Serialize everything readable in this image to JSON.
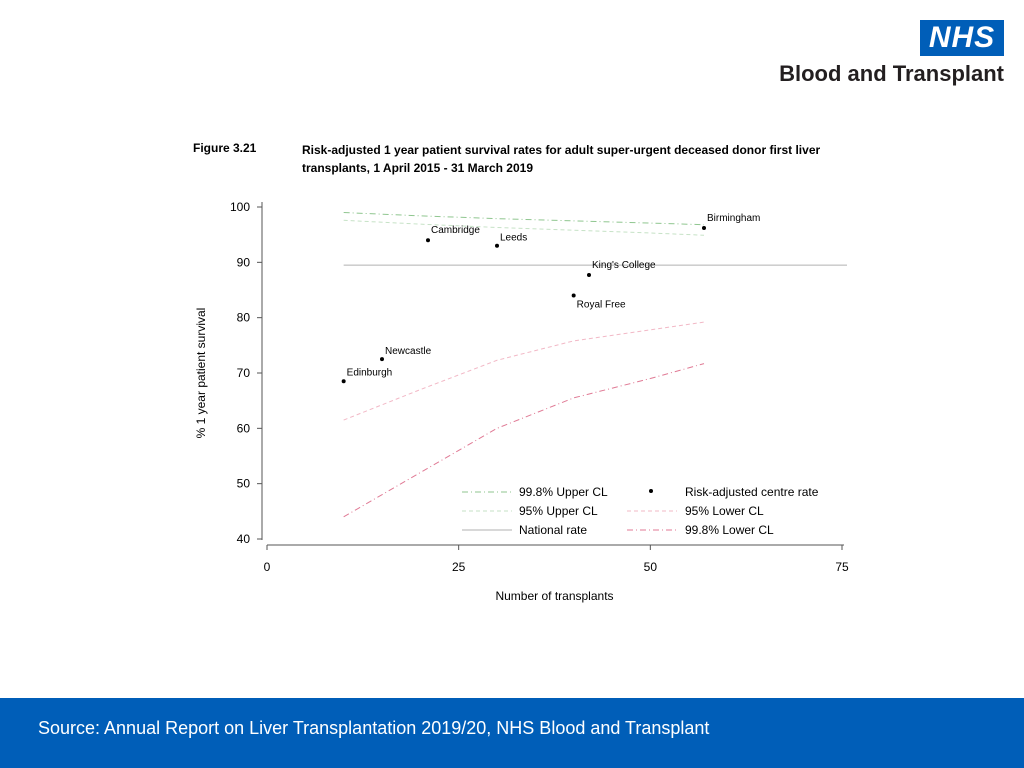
{
  "logo": {
    "nhs": "NHS",
    "subtitle": "Blood and Transplant"
  },
  "figure": {
    "label": "Figure 3.21",
    "title": "Risk-adjusted 1 year patient survival rates for adult super-urgent deceased donor first liver transplants, 1 April 2015 - 31 March 2019"
  },
  "footer": {
    "source": "Source: Annual Report on Liver Transplantation 2019/20, NHS Blood and Transplant"
  },
  "colors": {
    "brand_blue": "#005eb8",
    "upper998": "#8fc68f",
    "upper95": "#c6e2c6",
    "national": "#b0b0b0",
    "lower95": "#f2b8c6",
    "lower998": "#e07a95"
  },
  "chart_data": {
    "type": "scatter",
    "xlabel": "Number of transplants",
    "ylabel": "% 1 year patient survival",
    "xlim": [
      0,
      75
    ],
    "ylim": [
      40,
      100
    ],
    "xticks": [
      0,
      25,
      50,
      75
    ],
    "yticks": [
      40,
      50,
      60,
      70,
      80,
      90,
      100
    ],
    "points": [
      {
        "name": "Birmingham",
        "x": 57,
        "y": 96.2
      },
      {
        "name": "Cambridge",
        "x": 21,
        "y": 94.0
      },
      {
        "name": "Leeds",
        "x": 30,
        "y": 93.0
      },
      {
        "name": "King's College",
        "x": 42,
        "y": 87.7
      },
      {
        "name": "Royal Free",
        "x": 40,
        "y": 84.0
      },
      {
        "name": "Newcastle",
        "x": 15,
        "y": 72.5
      },
      {
        "name": "Edinburgh",
        "x": 10,
        "y": 68.5
      }
    ],
    "series": [
      {
        "name": "99.8% Upper CL",
        "style": "dash-dot",
        "color": "#8fc68f",
        "x": [
          10,
          20,
          30,
          40,
          50,
          57
        ],
        "y": [
          99.0,
          98.4,
          97.9,
          97.5,
          97.1,
          96.8
        ]
      },
      {
        "name": "95% Upper CL",
        "style": "dash",
        "color": "#c6e2c6",
        "x": [
          10,
          20,
          30,
          40,
          50,
          57
        ],
        "y": [
          97.6,
          96.9,
          96.3,
          95.8,
          95.3,
          94.9
        ]
      },
      {
        "name": "National rate",
        "style": "solid",
        "color": "#b0b0b0",
        "x": [
          10,
          75
        ],
        "y": [
          89.5,
          89.5
        ]
      },
      {
        "name": "95% Lower CL",
        "style": "dash",
        "color": "#f2b8c6",
        "x": [
          10,
          20,
          30,
          40,
          50,
          57
        ],
        "y": [
          61.5,
          67.0,
          72.3,
          75.8,
          77.8,
          79.2
        ]
      },
      {
        "name": "99.8% Lower CL",
        "style": "dash-dot",
        "color": "#e07a95",
        "x": [
          10,
          20,
          30,
          40,
          50,
          57
        ],
        "y": [
          44.0,
          52.0,
          60.0,
          65.5,
          69.0,
          71.7
        ]
      }
    ],
    "legend": {
      "position": "bottom-right",
      "entries": [
        "99.8% Upper CL",
        "Risk-adjusted centre rate",
        "95% Upper CL",
        "95% Lower CL",
        "National rate",
        "99.8% Lower CL"
      ]
    }
  }
}
